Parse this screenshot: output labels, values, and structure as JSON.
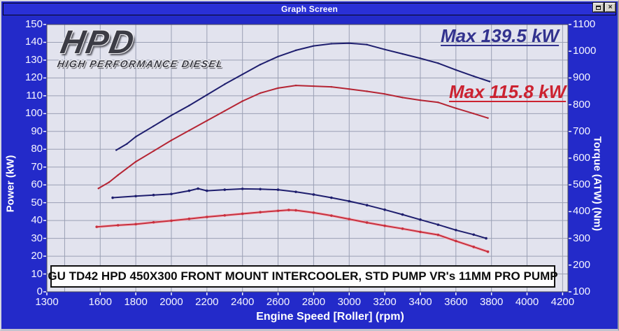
{
  "window": {
    "title": "Graph Screen"
  },
  "logo": {
    "line1": "HPD",
    "line2": "HIGH PERFORMANCE DIESEL"
  },
  "annotations": {
    "max_blue": "Max 139.5 kW",
    "max_red": "Max 115.8 kW",
    "footer": "GU TD42 HPD 450X300 FRONT MOUNT INTERCOOLER, STD PUMP VR's 11MM PRO PUMP"
  },
  "colors": {
    "frame_blue": "#232ac9",
    "titlebar_blue": "#2a30d6",
    "plot_bg": "#e2e3ee",
    "grid": "#9aa0b4",
    "plot_border": "#4a4a5a",
    "tick": "#f6f6ff",
    "series_blue": "#1e1e6e",
    "series_red_power": "#b52433",
    "series_red_torque": "#c8303e",
    "red_torque_halo": "#f2b6c0",
    "max_blue_text": "#32328e",
    "max_red_text": "#cc2230"
  },
  "chart_data": {
    "type": "line",
    "title": "Graph Screen",
    "xlabel": "Engine Speed [Roller] (rpm)",
    "ylabel_left": "Power (kW)",
    "ylabel_right": "Torque (ATW) (Nm)",
    "xlim": [
      1300,
      4230
    ],
    "ylim_left": [
      0,
      150
    ],
    "ylim_right": [
      100,
      1100
    ],
    "xticks": [
      1300,
      1600,
      1800,
      2000,
      2200,
      2400,
      2600,
      2800,
      3000,
      3200,
      3400,
      3600,
      3800,
      4000,
      4200
    ],
    "yticks_left": [
      0,
      10,
      20,
      30,
      40,
      50,
      60,
      70,
      80,
      90,
      100,
      110,
      120,
      130,
      140,
      150
    ],
    "yticks_right": [
      100,
      200,
      300,
      400,
      500,
      600,
      700,
      800,
      900,
      1000,
      1100
    ],
    "grid": {
      "x_start": 1400,
      "x_end": 4200,
      "x_step": 200,
      "y_step_left": 10,
      "on": true
    },
    "legend_position": "none",
    "max_power_blue_kw": 139.5,
    "max_power_red_kw": 115.8,
    "series": [
      {
        "name": "power-hpd-blue",
        "axis": "left",
        "units": "kW",
        "color": "series_blue",
        "marker_r": 1.2,
        "points": [
          [
            1690,
            79.5
          ],
          [
            1750,
            83
          ],
          [
            1800,
            87
          ],
          [
            1850,
            90
          ],
          [
            1900,
            93
          ],
          [
            1950,
            96
          ],
          [
            2000,
            99
          ],
          [
            2100,
            104.5
          ],
          [
            2200,
            110.5
          ],
          [
            2300,
            116.5
          ],
          [
            2400,
            122
          ],
          [
            2500,
            127.5
          ],
          [
            2600,
            132
          ],
          [
            2700,
            135.5
          ],
          [
            2800,
            138
          ],
          [
            2900,
            139.2
          ],
          [
            3000,
            139.5
          ],
          [
            3100,
            138.7
          ],
          [
            3200,
            136
          ],
          [
            3300,
            133.5
          ],
          [
            3400,
            131
          ],
          [
            3500,
            128.3
          ],
          [
            3600,
            124.5
          ],
          [
            3700,
            121
          ],
          [
            3790,
            118
          ]
        ]
      },
      {
        "name": "power-std-red",
        "axis": "left",
        "units": "kW",
        "color": "series_red_power",
        "marker_r": 1.2,
        "points": [
          [
            1590,
            58
          ],
          [
            1650,
            61.5
          ],
          [
            1700,
            65.5
          ],
          [
            1800,
            73
          ],
          [
            1900,
            79
          ],
          [
            2000,
            85
          ],
          [
            2100,
            90.5
          ],
          [
            2200,
            96
          ],
          [
            2300,
            101.5
          ],
          [
            2400,
            107
          ],
          [
            2500,
            111.5
          ],
          [
            2600,
            114.3
          ],
          [
            2700,
            115.8
          ],
          [
            2800,
            115.4
          ],
          [
            2900,
            115
          ],
          [
            3000,
            113.8
          ],
          [
            3100,
            112.5
          ],
          [
            3200,
            111
          ],
          [
            3300,
            109
          ],
          [
            3400,
            107.5
          ],
          [
            3500,
            106.3
          ],
          [
            3600,
            103
          ],
          [
            3700,
            100
          ],
          [
            3780,
            97.5
          ]
        ]
      },
      {
        "name": "torque-hpd-blue",
        "axis": "right",
        "units": "Nm",
        "color": "series_blue",
        "marker_r": 1.8,
        "points": [
          [
            1670,
            452
          ],
          [
            1800,
            458
          ],
          [
            1900,
            462
          ],
          [
            2000,
            466
          ],
          [
            2100,
            478
          ],
          [
            2150,
            486
          ],
          [
            2200,
            478
          ],
          [
            2300,
            482
          ],
          [
            2400,
            485
          ],
          [
            2500,
            484
          ],
          [
            2600,
            482
          ],
          [
            2700,
            474
          ],
          [
            2800,
            464
          ],
          [
            2900,
            452
          ],
          [
            3000,
            439
          ],
          [
            3100,
            424
          ],
          [
            3200,
            407
          ],
          [
            3300,
            389
          ],
          [
            3400,
            370
          ],
          [
            3500,
            351
          ],
          [
            3600,
            331
          ],
          [
            3700,
            314
          ],
          [
            3770,
            300
          ]
        ]
      },
      {
        "name": "torque-std-red",
        "axis": "right",
        "units": "Nm",
        "color": "series_red_torque",
        "halo": "red_torque_halo",
        "marker_r": 1.8,
        "points": [
          [
            1580,
            343
          ],
          [
            1700,
            349
          ],
          [
            1800,
            353
          ],
          [
            1900,
            360
          ],
          [
            2000,
            366
          ],
          [
            2100,
            373
          ],
          [
            2200,
            380
          ],
          [
            2300,
            386
          ],
          [
            2400,
            392
          ],
          [
            2500,
            398
          ],
          [
            2600,
            403
          ],
          [
            2660,
            406
          ],
          [
            2700,
            405
          ],
          [
            2800,
            396
          ],
          [
            2900,
            385
          ],
          [
            3000,
            372
          ],
          [
            3100,
            359
          ],
          [
            3200,
            347
          ],
          [
            3300,
            336
          ],
          [
            3400,
            324
          ],
          [
            3500,
            313
          ],
          [
            3600,
            290
          ],
          [
            3700,
            268
          ],
          [
            3780,
            250
          ]
        ]
      }
    ]
  }
}
